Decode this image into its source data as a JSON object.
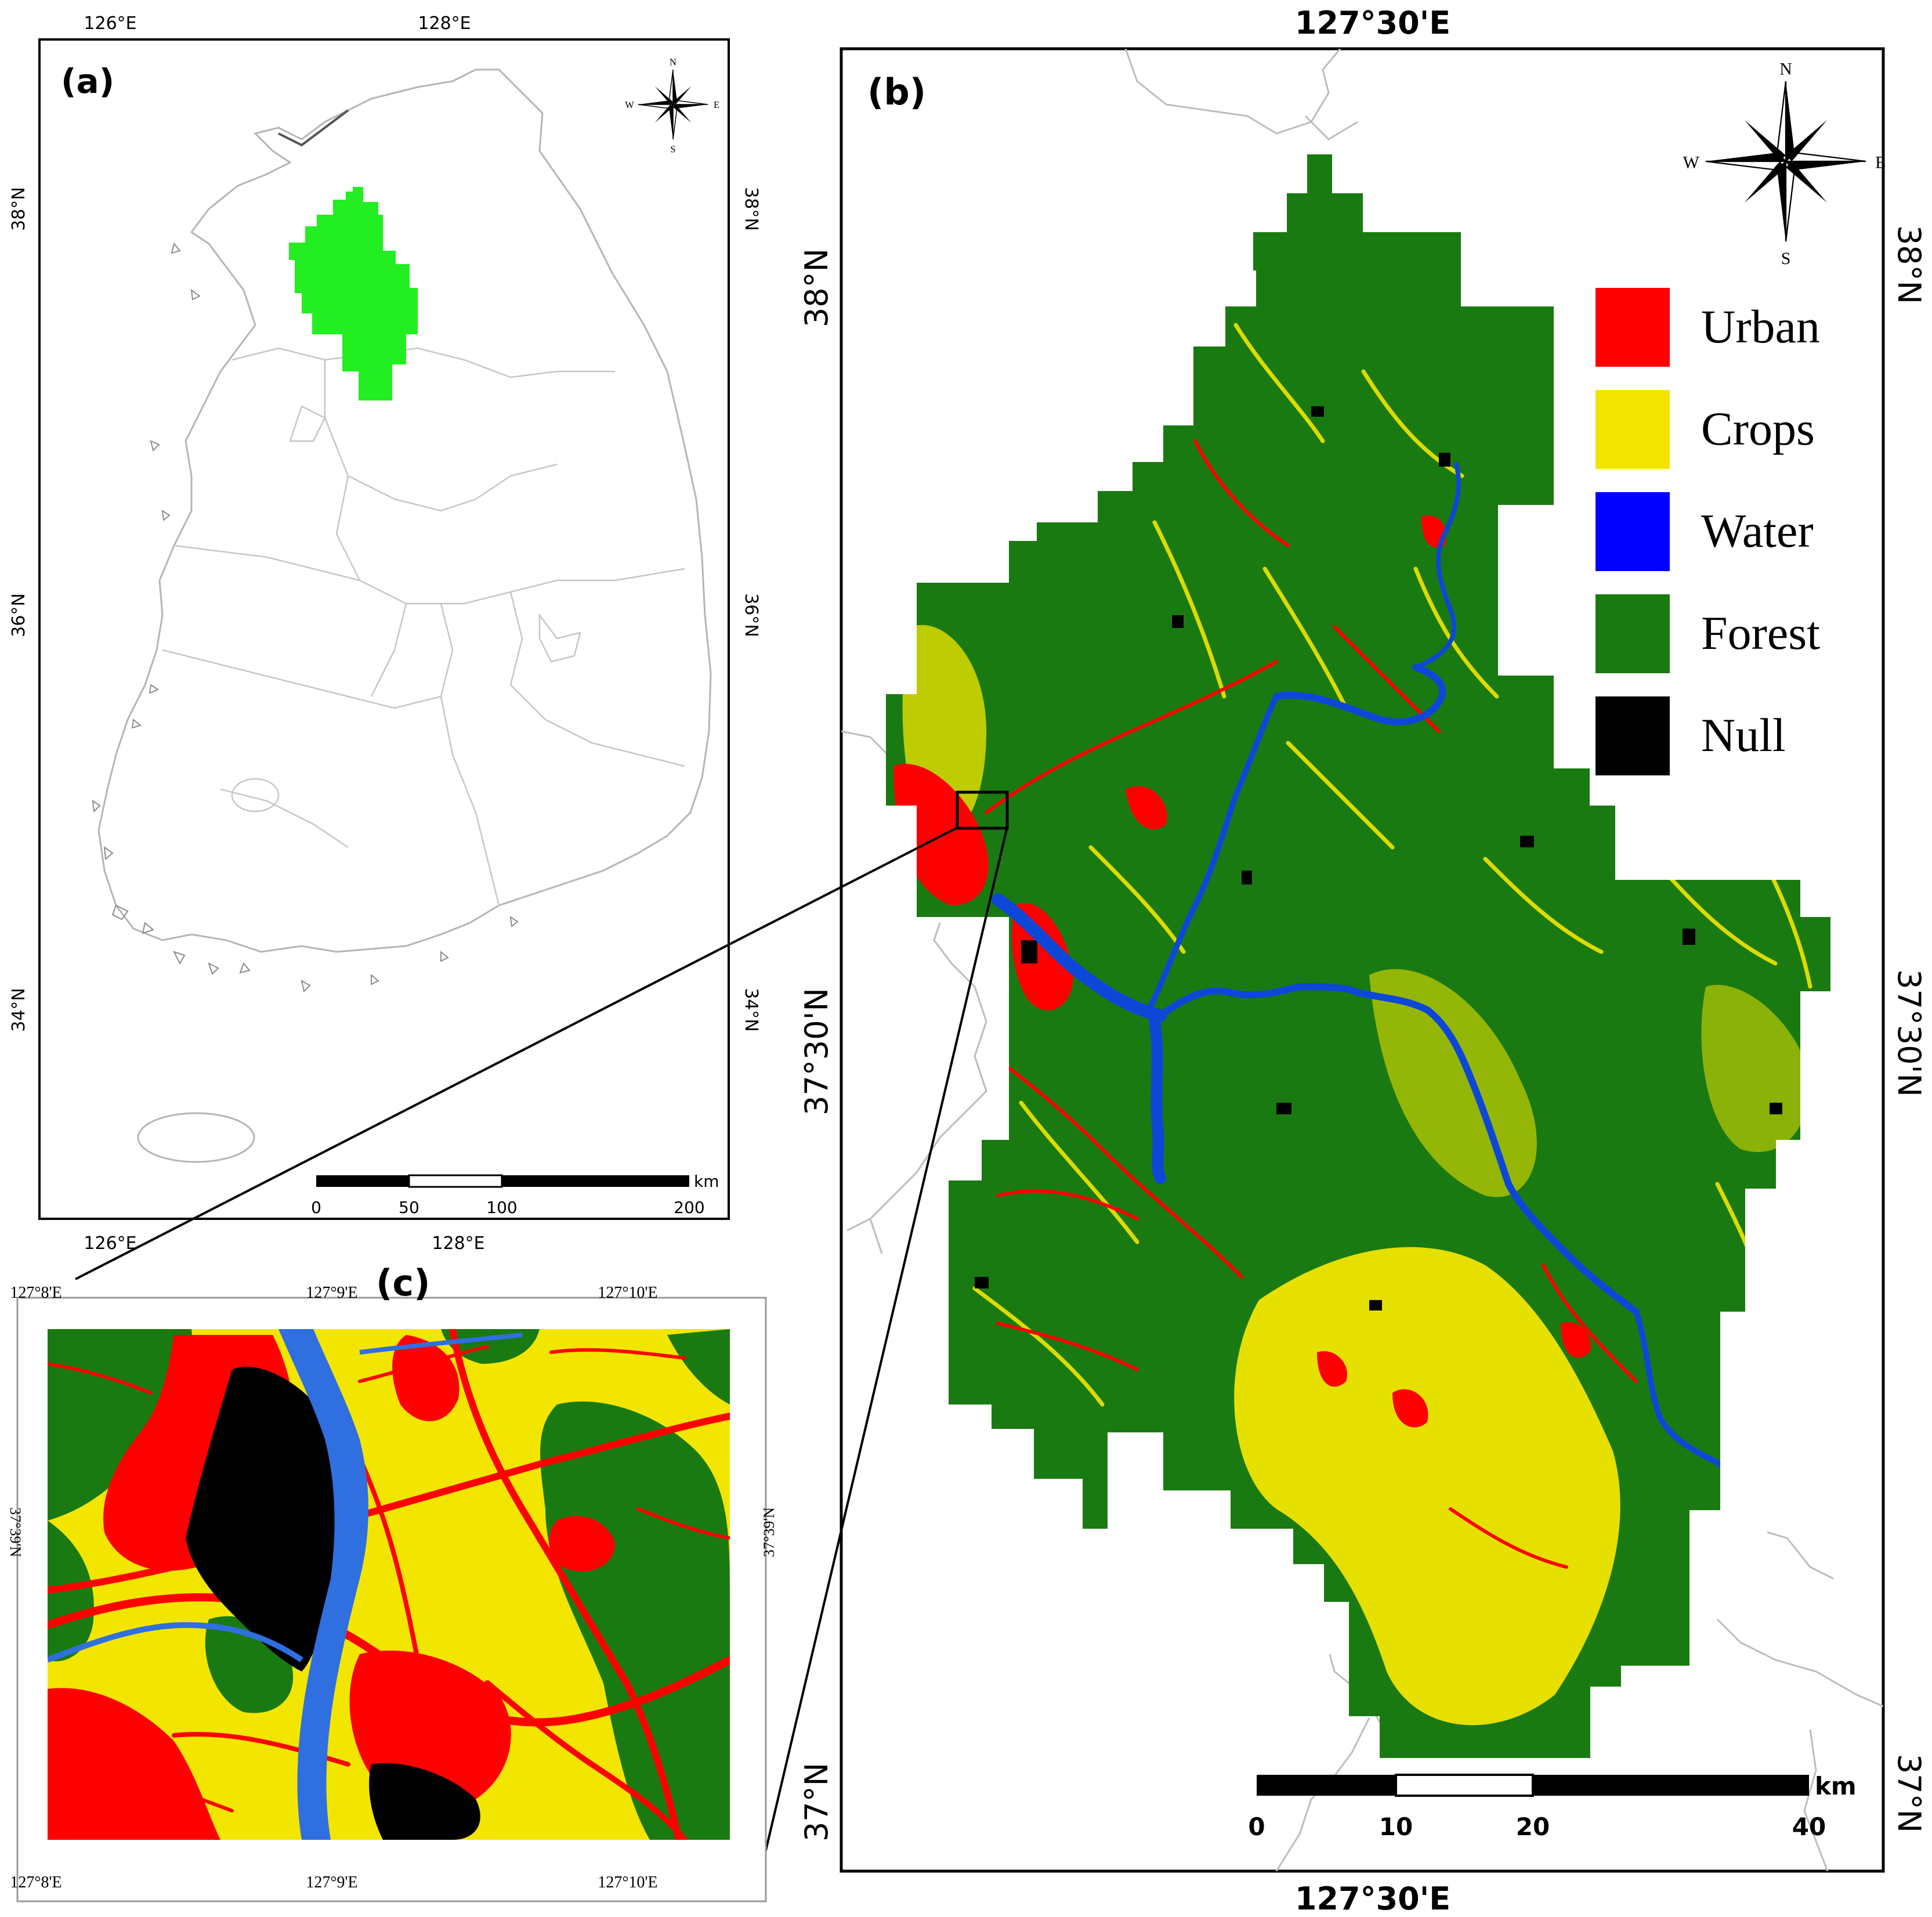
{
  "panel_a": {
    "label": "(a)",
    "top_ticks": [
      "126°E",
      "128°E"
    ],
    "bottom_ticks": [
      "126°E",
      "128°E"
    ],
    "left_ticks": [
      "38°N",
      "36°N",
      "34°N"
    ],
    "right_ticks": [
      "38°N",
      "36°N",
      "34°N"
    ],
    "compass": {
      "n": "N",
      "s": "S",
      "e": "E",
      "w": "W"
    },
    "scale_bar": {
      "unit": "km",
      "ticks": [
        "0",
        "50",
        "100",
        "200"
      ]
    },
    "study_area_color": "#22ee22"
  },
  "panel_b": {
    "label": "(b)",
    "top_tick": "127°30'E",
    "bottom_tick": "127°30'E",
    "left_ticks": [
      "38°N",
      "37°30'N",
      "37°N"
    ],
    "right_ticks": [
      "38°N",
      "37°30'N",
      "37°N"
    ],
    "compass": {
      "n": "N",
      "s": "S",
      "e": "E",
      "w": "W"
    },
    "scale_bar": {
      "unit": "km",
      "ticks": [
        "0",
        "10",
        "20",
        "40"
      ]
    },
    "legend": [
      {
        "label": "Urban",
        "color": "#ff0000"
      },
      {
        "label": "Crops",
        "color": "#f2e600"
      },
      {
        "label": "Water",
        "color": "#0000ff"
      },
      {
        "label": "Forest",
        "color": "#1a7a12"
      },
      {
        "label": "Null",
        "color": "#000000"
      }
    ]
  },
  "panel_c": {
    "label": "(c)",
    "top_ticks": [
      "127°8'E",
      "127°9'E",
      "127°10'E"
    ],
    "bottom_ticks": [
      "127°8'E",
      "127°9'E",
      "127°10'E"
    ],
    "left_tick": "37°39'N",
    "right_tick": "37°39'N"
  },
  "colors": {
    "urban": "#ff0000",
    "crops": "#f2e600",
    "water": "#2f6fe0",
    "forest": "#1a7a12",
    "null": "#000000",
    "boundary": "#b8b8b8"
  }
}
